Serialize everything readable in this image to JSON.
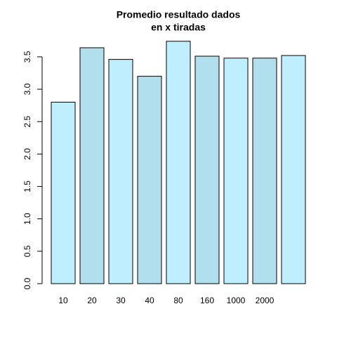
{
  "chart_data": {
    "type": "bar",
    "title": [
      "Promedio resultado dados",
      "en x tiradas"
    ],
    "categories": [
      "10",
      "20",
      "30",
      "40",
      "80",
      "160",
      "1000",
      "2000",
      null
    ],
    "values": [
      2.8,
      3.64,
      3.46,
      3.2,
      3.74,
      3.51,
      3.48,
      3.48,
      3.52
    ],
    "colors": [
      "#bfefff",
      "#b2dfee",
      "#bfefff",
      "#b2dfee",
      "#bfefff",
      "#b2dfee",
      "#bfefff",
      "#b2dfee",
      "#bfefff"
    ],
    "ylim": [
      0,
      3.9
    ],
    "yticks": [
      {
        "value": 0,
        "label": "0.0"
      },
      0.5,
      {
        "value": 1,
        "label": "1.0"
      },
      1.5,
      {
        "value": 2,
        "label": "2.0"
      },
      2.5,
      {
        "value": 3,
        "label": "3.0"
      },
      3.5
    ]
  }
}
